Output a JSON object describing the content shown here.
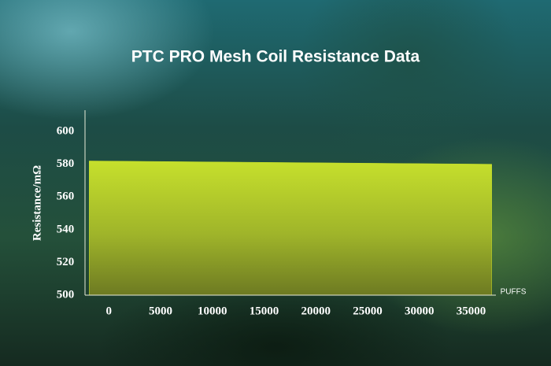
{
  "chart_data": {
    "type": "area",
    "title": "PTC PRO Mesh Coil Resistance Data",
    "y_label": "Resistance/mΩ",
    "x_label": "PUFFS",
    "x": [
      -1900,
      37000
    ],
    "values": [
      582,
      580
    ],
    "color": "#c2dc2a",
    "xlim": [
      -2300,
      37400
    ],
    "xticks": [
      0,
      5000,
      10000,
      15000,
      20000,
      25000,
      30000,
      35000
    ],
    "ylim": [
      500,
      613
    ],
    "yticks": [
      500,
      520,
      540,
      560,
      580,
      600
    ],
    "grid": false
  }
}
